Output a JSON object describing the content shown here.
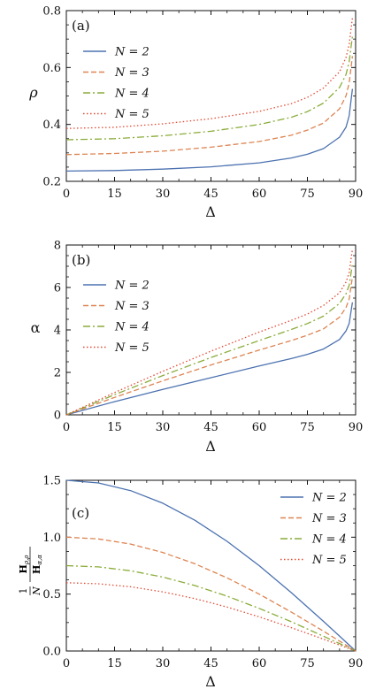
{
  "chart_data": [
    {
      "type": "line",
      "panel_label": "(a)",
      "xlabel": "Δ",
      "ylabel": "ρ",
      "xlim": [
        0,
        90
      ],
      "ylim": [
        0.2,
        0.8
      ],
      "xticks": [
        "0",
        "15",
        "30",
        "45",
        "60",
        "75",
        "90"
      ],
      "yticks": [
        "0.2",
        "0.4",
        "0.6",
        "0.8"
      ],
      "grid": false,
      "legend_position": "top-left",
      "x": [
        0,
        15,
        30,
        45,
        60,
        70,
        75,
        80,
        85,
        87,
        88,
        89
      ],
      "series": [
        {
          "name": "N = 2",
          "color": "#4c72b0",
          "dash": "solid",
          "values": [
            0.236,
            0.238,
            0.243,
            0.251,
            0.265,
            0.282,
            0.295,
            0.315,
            0.355,
            0.39,
            0.43,
            0.525
          ]
        },
        {
          "name": "N = 3",
          "color": "#dd8452",
          "dash": "dashed",
          "values": [
            0.294,
            0.298,
            0.306,
            0.32,
            0.34,
            0.362,
            0.38,
            0.405,
            0.455,
            0.5,
            0.545,
            0.64
          ]
        },
        {
          "name": "N = 4",
          "color": "#8aac3a",
          "dash": "dashdot",
          "values": [
            0.346,
            0.35,
            0.36,
            0.376,
            0.4,
            0.425,
            0.445,
            0.475,
            0.53,
            0.575,
            0.62,
            0.71
          ]
        },
        {
          "name": "N = 5",
          "color": "#e24a33",
          "dash": "dotted",
          "values": [
            0.386,
            0.39,
            0.402,
            0.42,
            0.446,
            0.473,
            0.495,
            0.528,
            0.585,
            0.635,
            0.68,
            0.775
          ]
        }
      ]
    },
    {
      "type": "line",
      "panel_label": "(b)",
      "xlabel": "Δ",
      "ylabel": "α",
      "xlim": [
        0,
        90
      ],
      "ylim": [
        0,
        8
      ],
      "xticks": [
        "0",
        "15",
        "30",
        "45",
        "60",
        "75",
        "90"
      ],
      "yticks": [
        "0",
        "2",
        "4",
        "6",
        "8"
      ],
      "grid": false,
      "legend_position": "top-left",
      "x": [
        0,
        15,
        30,
        45,
        60,
        70,
        75,
        80,
        85,
        87,
        88,
        89
      ],
      "series": [
        {
          "name": "N = 2",
          "color": "#4c72b0",
          "dash": "solid",
          "values": [
            0.0,
            0.62,
            1.2,
            1.75,
            2.3,
            2.65,
            2.85,
            3.1,
            3.55,
            3.95,
            4.3,
            5.3
          ]
        },
        {
          "name": "N = 3",
          "color": "#dd8452",
          "dash": "dashed",
          "values": [
            0.0,
            0.82,
            1.6,
            2.35,
            3.05,
            3.5,
            3.75,
            4.05,
            4.6,
            5.05,
            5.45,
            6.5
          ]
        },
        {
          "name": "N = 4",
          "color": "#8aac3a",
          "dash": "dashdot",
          "values": [
            0.0,
            0.95,
            1.85,
            2.7,
            3.5,
            4.02,
            4.3,
            4.65,
            5.25,
            5.7,
            6.1,
            7.1
          ]
        },
        {
          "name": "N = 5",
          "color": "#e24a33",
          "dash": "dotted",
          "values": [
            0.0,
            1.05,
            2.05,
            3.0,
            3.9,
            4.45,
            4.75,
            5.15,
            5.75,
            6.25,
            6.7,
            7.8
          ]
        }
      ]
    },
    {
      "type": "line",
      "panel_label": "(c)",
      "xlabel": "Δ",
      "ylabel_numerator": "1",
      "ylabel_denominator": "N",
      "ylabel_frac_numerator": "H",
      "ylabel_frac_numerator_sub": "ρ,ρ",
      "ylabel_frac_denominator": "H",
      "ylabel_frac_denominator_sub": "α,α",
      "xlim": [
        0,
        90
      ],
      "ylim": [
        0,
        1.5
      ],
      "xticks": [
        "0",
        "15",
        "30",
        "45",
        "60",
        "75",
        "90"
      ],
      "yticks": [
        "0.0",
        "0.5",
        "1.0",
        "1.5"
      ],
      "grid": false,
      "legend_position": "top-right",
      "x": [
        0,
        10,
        20,
        30,
        40,
        50,
        60,
        70,
        80,
        85,
        90
      ],
      "series": [
        {
          "name": "N = 2",
          "color": "#4c72b0",
          "dash": "solid",
          "values": [
            1.5,
            1.477,
            1.409,
            1.299,
            1.149,
            0.964,
            0.75,
            0.513,
            0.26,
            0.131,
            0.0
          ]
        },
        {
          "name": "N = 3",
          "color": "#dd8452",
          "dash": "dashed",
          "values": [
            1.0,
            0.985,
            0.94,
            0.866,
            0.766,
            0.643,
            0.5,
            0.342,
            0.174,
            0.087,
            0.0
          ]
        },
        {
          "name": "N = 4",
          "color": "#8aac3a",
          "dash": "dashdot",
          "values": [
            0.75,
            0.739,
            0.705,
            0.65,
            0.575,
            0.482,
            0.375,
            0.257,
            0.13,
            0.065,
            0.0
          ]
        },
        {
          "name": "N = 5",
          "color": "#e24a33",
          "dash": "dotted",
          "values": [
            0.6,
            0.591,
            0.564,
            0.52,
            0.46,
            0.386,
            0.3,
            0.205,
            0.104,
            0.052,
            0.0
          ]
        }
      ]
    }
  ]
}
